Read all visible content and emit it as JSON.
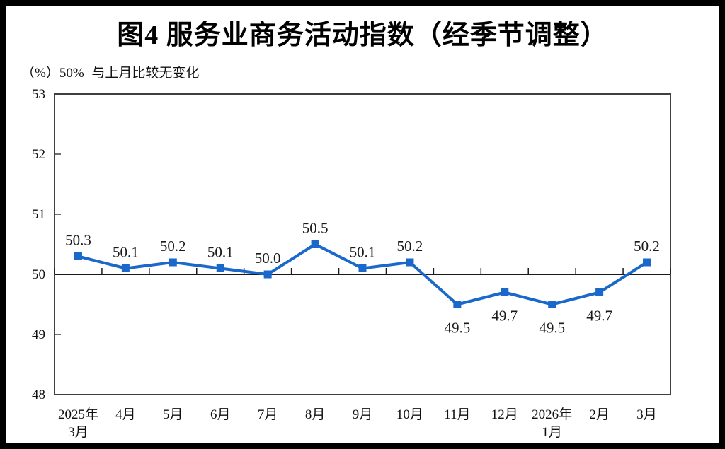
{
  "chart_data": {
    "type": "line",
    "title": "图4  服务业商务活动指数（经季节调整）",
    "unit_note": "（%）50%=与上月比较无变化",
    "categories": [
      [
        "2025年",
        "3月"
      ],
      [
        "4月"
      ],
      [
        "5月"
      ],
      [
        "6月"
      ],
      [
        "7月"
      ],
      [
        "8月"
      ],
      [
        "9月"
      ],
      [
        "10月"
      ],
      [
        "11月"
      ],
      [
        "12月"
      ],
      [
        "2026年",
        "1月"
      ],
      [
        "2月"
      ],
      [
        "3月"
      ]
    ],
    "values": [
      50.3,
      50.1,
      50.2,
      50.1,
      50.0,
      50.5,
      50.1,
      50.2,
      49.5,
      49.7,
      49.5,
      49.7,
      50.2
    ],
    "data_labels": [
      "50.3",
      "50.1",
      "50.2",
      "50.1",
      "50.0",
      "50.5",
      "50.1",
      "50.2",
      "49.5",
      "49.7",
      "49.5",
      "49.7",
      "50.2"
    ],
    "ylim": [
      48,
      53
    ],
    "yticks": [
      53,
      52,
      51,
      50,
      49,
      48
    ],
    "reference_value": 50,
    "grid": false,
    "legend": "none",
    "colors": {
      "line": "#1a68c9",
      "marker": "#1a68c9",
      "reference_line": "#1a1a1a",
      "plot_border": "#404040",
      "text": "#111111",
      "frame": "#000000",
      "background": "#ffffff"
    }
  }
}
